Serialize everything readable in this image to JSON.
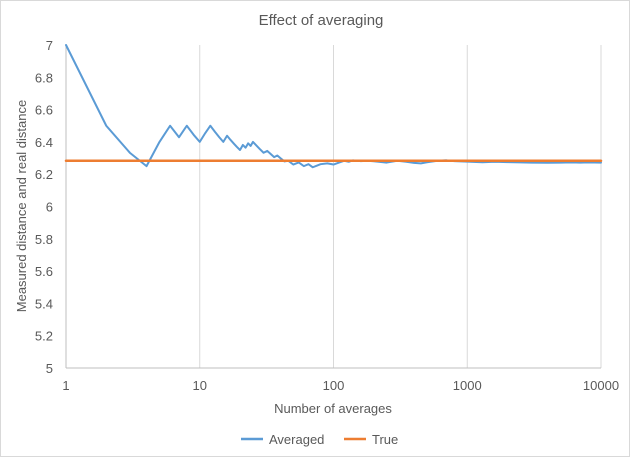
{
  "chart_data": {
    "type": "line",
    "title": "Effect of averaging",
    "xlabel": "Number of averages",
    "ylabel": "Measured distance and real distance",
    "xscale": "log",
    "xlim": [
      1,
      10000
    ],
    "ylim": [
      5,
      7
    ],
    "x_ticks": [
      1,
      10,
      100,
      1000,
      10000
    ],
    "x_tick_labels": [
      "1",
      "10",
      "100",
      "1000",
      "10000"
    ],
    "y_ticks": [
      5,
      5.2,
      5.4,
      5.6,
      5.8,
      6,
      6.2,
      6.4,
      6.6,
      6.8,
      7
    ],
    "y_tick_labels": [
      "5",
      "5.2",
      "5.4",
      "5.6",
      "5.8",
      "6",
      "6.2",
      "6.4",
      "6.6",
      "6.8",
      "7"
    ],
    "grid": "vertical major gridlines on x",
    "legend_position": "bottom",
    "series": [
      {
        "name": "Averaged",
        "color": "#5b9bd5",
        "points": [
          [
            1,
            7.0
          ],
          [
            2,
            6.5
          ],
          [
            3,
            6.333
          ],
          [
            4,
            6.25
          ],
          [
            5,
            6.4
          ],
          [
            6,
            6.5
          ],
          [
            7,
            6.429
          ],
          [
            8,
            6.5
          ],
          [
            9,
            6.444
          ],
          [
            10,
            6.4
          ],
          [
            11,
            6.455
          ],
          [
            12,
            6.5
          ],
          [
            13,
            6.462
          ],
          [
            14,
            6.429
          ],
          [
            15,
            6.4
          ],
          [
            16,
            6.438
          ],
          [
            17,
            6.412
          ],
          [
            18,
            6.389
          ],
          [
            19,
            6.368
          ],
          [
            20,
            6.35
          ],
          [
            21,
            6.381
          ],
          [
            22,
            6.364
          ],
          [
            23,
            6.391
          ],
          [
            24,
            6.375
          ],
          [
            25,
            6.4
          ],
          [
            26,
            6.385
          ],
          [
            28,
            6.357
          ],
          [
            30,
            6.333
          ],
          [
            32,
            6.344
          ],
          [
            34,
            6.324
          ],
          [
            36,
            6.306
          ],
          [
            38,
            6.316
          ],
          [
            40,
            6.3
          ],
          [
            43,
            6.279
          ],
          [
            46,
            6.283
          ],
          [
            50,
            6.26
          ],
          [
            55,
            6.273
          ],
          [
            60,
            6.25
          ],
          [
            65,
            6.262
          ],
          [
            70,
            6.243
          ],
          [
            75,
            6.253
          ],
          [
            80,
            6.262
          ],
          [
            90,
            6.267
          ],
          [
            100,
            6.26
          ],
          [
            110,
            6.272
          ],
          [
            120,
            6.283
          ],
          [
            130,
            6.277
          ],
          [
            140,
            6.286
          ],
          [
            160,
            6.281
          ],
          [
            180,
            6.283
          ],
          [
            200,
            6.28
          ],
          [
            250,
            6.272
          ],
          [
            300,
            6.283
          ],
          [
            350,
            6.277
          ],
          [
            400,
            6.27
          ],
          [
            450,
            6.267
          ],
          [
            500,
            6.274
          ],
          [
            600,
            6.283
          ],
          [
            700,
            6.286
          ],
          [
            800,
            6.281
          ],
          [
            1000,
            6.278
          ],
          [
            1300,
            6.274
          ],
          [
            1600,
            6.277
          ],
          [
            2000,
            6.275
          ],
          [
            2500,
            6.273
          ],
          [
            3000,
            6.272
          ],
          [
            4000,
            6.271
          ],
          [
            5000,
            6.272
          ],
          [
            6000,
            6.273
          ],
          [
            7000,
            6.272
          ],
          [
            8000,
            6.273
          ],
          [
            10000,
            6.272
          ]
        ]
      },
      {
        "name": "True",
        "color": "#ed7d31",
        "points": [
          [
            1,
            6.283
          ],
          [
            10000,
            6.283
          ]
        ]
      }
    ]
  }
}
